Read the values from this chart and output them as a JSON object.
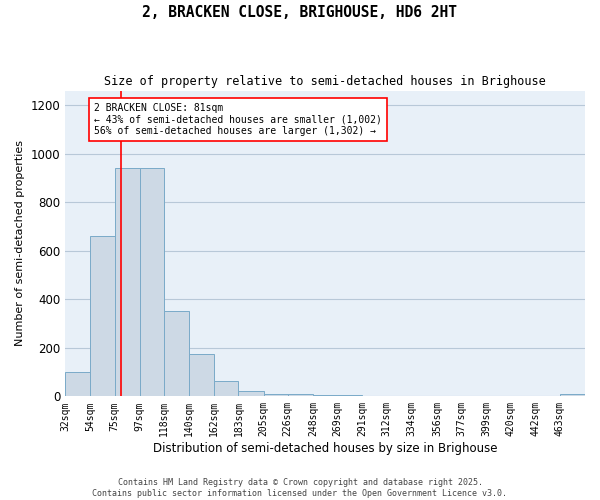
{
  "title": "2, BRACKEN CLOSE, BRIGHOUSE, HD6 2HT",
  "subtitle": "Size of property relative to semi-detached houses in Brighouse",
  "xlabel": "Distribution of semi-detached houses by size in Brighouse",
  "ylabel": "Number of semi-detached properties",
  "bar_color": "#cdd9e5",
  "bar_edge_color": "#7aaac8",
  "grid_color": "#b8c8d8",
  "background_color": "#e8f0f8",
  "annotation_line_color": "red",
  "property_label": "2 BRACKEN CLOSE: 81sqm",
  "pct_smaller": "43% of semi-detached houses are smaller (1,002)",
  "pct_larger": "56% of semi-detached houses are larger (1,302)",
  "bin_labels": [
    "32sqm",
    "54sqm",
    "75sqm",
    "97sqm",
    "118sqm",
    "140sqm",
    "162sqm",
    "183sqm",
    "205sqm",
    "226sqm",
    "248sqm",
    "269sqm",
    "291sqm",
    "312sqm",
    "334sqm",
    "356sqm",
    "377sqm",
    "399sqm",
    "420sqm",
    "442sqm",
    "463sqm"
  ],
  "bin_edges": [
    32,
    54,
    75,
    97,
    118,
    140,
    162,
    183,
    205,
    226,
    248,
    269,
    291,
    312,
    334,
    356,
    377,
    399,
    420,
    442,
    463,
    485
  ],
  "bar_heights": [
    100,
    660,
    940,
    940,
    350,
    175,
    65,
    20,
    10,
    10,
    5,
    5,
    0,
    0,
    0,
    0,
    0,
    0,
    0,
    0,
    10
  ],
  "ylim": [
    0,
    1260
  ],
  "yticks": [
    0,
    200,
    400,
    600,
    800,
    1000,
    1200
  ],
  "property_line_x": 81,
  "footer_line1": "Contains HM Land Registry data © Crown copyright and database right 2025.",
  "footer_line2": "Contains public sector information licensed under the Open Government Licence v3.0."
}
